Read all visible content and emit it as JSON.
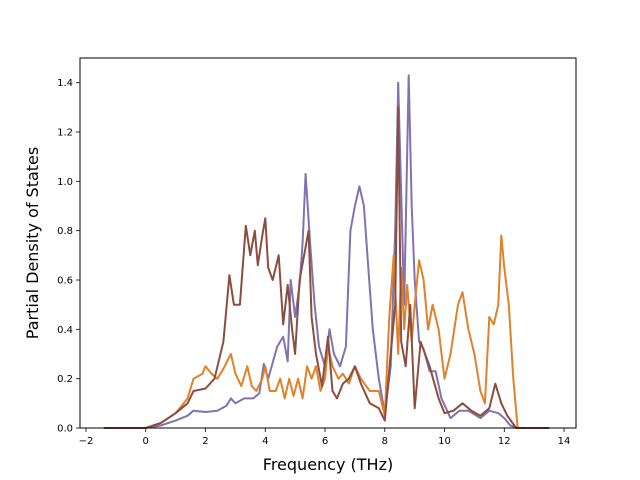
{
  "chart_data": {
    "type": "line",
    "title": "",
    "xlabel": "Frequency (THz)",
    "ylabel": "Partial Density of States",
    "xlim": [
      -2.2,
      14.4
    ],
    "ylim": [
      0,
      1.5
    ],
    "xticks": [
      -2,
      0,
      2,
      4,
      6,
      8,
      10,
      12,
      14
    ],
    "xtick_labels": [
      "−2",
      "0",
      "2",
      "4",
      "6",
      "8",
      "10",
      "12",
      "14"
    ],
    "yticks": [
      0.0,
      0.2,
      0.4,
      0.6,
      0.8,
      1.0,
      1.2,
      1.4
    ],
    "ytick_labels": [
      "0.0",
      "0.2",
      "0.4",
      "0.6",
      "0.8",
      "1.0",
      "1.2",
      "1.4"
    ],
    "grid": false,
    "legend": "none",
    "series": [
      {
        "color": "#8172b2",
        "points": [
          [
            -1.4,
            0
          ],
          [
            0,
            0
          ],
          [
            0.5,
            0.01
          ],
          [
            1,
            0.03
          ],
          [
            1.4,
            0.05
          ],
          [
            1.6,
            0.07
          ],
          [
            2,
            0.065
          ],
          [
            2.4,
            0.07
          ],
          [
            2.7,
            0.09
          ],
          [
            2.85,
            0.12
          ],
          [
            3,
            0.1
          ],
          [
            3.3,
            0.12
          ],
          [
            3.6,
            0.12
          ],
          [
            3.8,
            0.14
          ],
          [
            3.95,
            0.26
          ],
          [
            4.1,
            0.2
          ],
          [
            4.4,
            0.33
          ],
          [
            4.6,
            0.37
          ],
          [
            4.75,
            0.27
          ],
          [
            4.85,
            0.6
          ],
          [
            5.0,
            0.45
          ],
          [
            5.15,
            0.58
          ],
          [
            5.25,
            0.75
          ],
          [
            5.35,
            1.03
          ],
          [
            5.5,
            0.75
          ],
          [
            5.65,
            0.5
          ],
          [
            5.8,
            0.33
          ],
          [
            6.0,
            0.25
          ],
          [
            6.15,
            0.4
          ],
          [
            6.3,
            0.3
          ],
          [
            6.5,
            0.25
          ],
          [
            6.7,
            0.33
          ],
          [
            6.85,
            0.8
          ],
          [
            7.0,
            0.9
          ],
          [
            7.15,
            0.98
          ],
          [
            7.3,
            0.9
          ],
          [
            7.45,
            0.65
          ],
          [
            7.6,
            0.4
          ],
          [
            7.8,
            0.2
          ],
          [
            8.0,
            0.06
          ],
          [
            8.2,
            0.25
          ],
          [
            8.35,
            0.8
          ],
          [
            8.45,
            1.4
          ],
          [
            8.55,
            0.95
          ],
          [
            8.65,
            0.5
          ],
          [
            8.8,
            1.43
          ],
          [
            8.9,
            0.9
          ],
          [
            9.0,
            0.6
          ],
          [
            9.15,
            0.35
          ],
          [
            9.3,
            0.32
          ],
          [
            9.5,
            0.23
          ],
          [
            9.7,
            0.23
          ],
          [
            9.9,
            0.12
          ],
          [
            10.2,
            0.04
          ],
          [
            10.5,
            0.07
          ],
          [
            10.8,
            0.07
          ],
          [
            11.2,
            0.04
          ],
          [
            11.5,
            0.07
          ],
          [
            11.8,
            0.06
          ],
          [
            12.0,
            0.04
          ],
          [
            12.2,
            0.01
          ],
          [
            12.5,
            0
          ],
          [
            13.5,
            0
          ]
        ]
      },
      {
        "color": "#e1812c",
        "points": [
          [
            -1.4,
            0
          ],
          [
            0,
            0
          ],
          [
            0.5,
            0.02
          ],
          [
            1,
            0.06
          ],
          [
            1.4,
            0.12
          ],
          [
            1.6,
            0.2
          ],
          [
            1.9,
            0.22
          ],
          [
            2.0,
            0.25
          ],
          [
            2.2,
            0.22
          ],
          [
            2.4,
            0.2
          ],
          [
            2.6,
            0.24
          ],
          [
            2.85,
            0.3
          ],
          [
            3.0,
            0.22
          ],
          [
            3.2,
            0.17
          ],
          [
            3.4,
            0.25
          ],
          [
            3.55,
            0.17
          ],
          [
            3.7,
            0.15
          ],
          [
            3.9,
            0.2
          ],
          [
            4.0,
            0.25
          ],
          [
            4.15,
            0.15
          ],
          [
            4.35,
            0.15
          ],
          [
            4.5,
            0.2
          ],
          [
            4.65,
            0.12
          ],
          [
            4.8,
            0.2
          ],
          [
            4.95,
            0.13
          ],
          [
            5.1,
            0.2
          ],
          [
            5.25,
            0.12
          ],
          [
            5.4,
            0.25
          ],
          [
            5.55,
            0.2
          ],
          [
            5.7,
            0.25
          ],
          [
            5.85,
            0.15
          ],
          [
            6.0,
            0.2
          ],
          [
            6.1,
            0.33
          ],
          [
            6.25,
            0.25
          ],
          [
            6.45,
            0.2
          ],
          [
            6.6,
            0.22
          ],
          [
            6.8,
            0.18
          ],
          [
            7.0,
            0.25
          ],
          [
            7.2,
            0.2
          ],
          [
            7.5,
            0.15
          ],
          [
            7.8,
            0.15
          ],
          [
            8.0,
            0.05
          ],
          [
            8.15,
            0.45
          ],
          [
            8.3,
            0.7
          ],
          [
            8.45,
            0.3
          ],
          [
            8.55,
            0.65
          ],
          [
            8.65,
            0.4
          ],
          [
            8.75,
            0.58
          ],
          [
            8.9,
            0.35
          ],
          [
            9.0,
            0.5
          ],
          [
            9.15,
            0.68
          ],
          [
            9.3,
            0.6
          ],
          [
            9.45,
            0.4
          ],
          [
            9.6,
            0.5
          ],
          [
            9.8,
            0.4
          ],
          [
            10.0,
            0.2
          ],
          [
            10.2,
            0.3
          ],
          [
            10.45,
            0.5
          ],
          [
            10.6,
            0.55
          ],
          [
            10.8,
            0.4
          ],
          [
            11.0,
            0.3
          ],
          [
            11.2,
            0.15
          ],
          [
            11.35,
            0.1
          ],
          [
            11.5,
            0.45
          ],
          [
            11.65,
            0.42
          ],
          [
            11.8,
            0.5
          ],
          [
            11.9,
            0.78
          ],
          [
            12.0,
            0.65
          ],
          [
            12.15,
            0.5
          ],
          [
            12.3,
            0.2
          ],
          [
            12.45,
            0
          ],
          [
            13.5,
            0
          ]
        ]
      },
      {
        "color": "#8c4d3f",
        "points": [
          [
            -1.4,
            0
          ],
          [
            0,
            0
          ],
          [
            0.5,
            0.02
          ],
          [
            1,
            0.06
          ],
          [
            1.4,
            0.1
          ],
          [
            1.6,
            0.15
          ],
          [
            2.0,
            0.16
          ],
          [
            2.3,
            0.2
          ],
          [
            2.6,
            0.35
          ],
          [
            2.8,
            0.62
          ],
          [
            2.95,
            0.5
          ],
          [
            3.15,
            0.5
          ],
          [
            3.35,
            0.82
          ],
          [
            3.5,
            0.7
          ],
          [
            3.65,
            0.8
          ],
          [
            3.75,
            0.66
          ],
          [
            3.9,
            0.78
          ],
          [
            4.0,
            0.85
          ],
          [
            4.1,
            0.65
          ],
          [
            4.25,
            0.6
          ],
          [
            4.45,
            0.7
          ],
          [
            4.6,
            0.42
          ],
          [
            4.75,
            0.58
          ],
          [
            4.9,
            0.4
          ],
          [
            5.0,
            0.3
          ],
          [
            5.15,
            0.6
          ],
          [
            5.3,
            0.7
          ],
          [
            5.45,
            0.8
          ],
          [
            5.55,
            0.45
          ],
          [
            5.7,
            0.3
          ],
          [
            5.9,
            0.17
          ],
          [
            6.1,
            0.37
          ],
          [
            6.25,
            0.15
          ],
          [
            6.4,
            0.12
          ],
          [
            6.6,
            0.18
          ],
          [
            6.8,
            0.2
          ],
          [
            7.0,
            0.25
          ],
          [
            7.2,
            0.18
          ],
          [
            7.5,
            0.1
          ],
          [
            7.8,
            0.08
          ],
          [
            8.0,
            0.03
          ],
          [
            8.2,
            0.3
          ],
          [
            8.35,
            0.5
          ],
          [
            8.45,
            1.3
          ],
          [
            8.55,
            0.35
          ],
          [
            8.7,
            0.25
          ],
          [
            8.85,
            0.5
          ],
          [
            9.0,
            0.08
          ],
          [
            9.2,
            0.35
          ],
          [
            9.5,
            0.25
          ],
          [
            9.8,
            0.12
          ],
          [
            10.0,
            0.06
          ],
          [
            10.3,
            0.07
          ],
          [
            10.6,
            0.1
          ],
          [
            10.9,
            0.07
          ],
          [
            11.2,
            0.05
          ],
          [
            11.5,
            0.08
          ],
          [
            11.7,
            0.18
          ],
          [
            11.9,
            0.1
          ],
          [
            12.1,
            0.05
          ],
          [
            12.4,
            0
          ],
          [
            13.5,
            0
          ]
        ]
      }
    ]
  }
}
